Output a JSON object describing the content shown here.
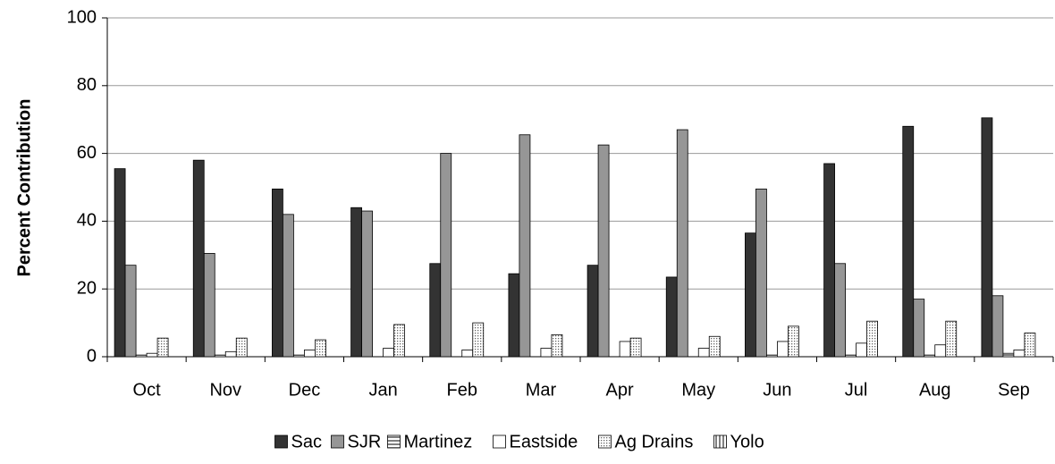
{
  "chart_data": {
    "type": "bar",
    "y_label": "Percent Contribution",
    "categories": [
      "Oct",
      "Nov",
      "Dec",
      "Jan",
      "Feb",
      "Mar",
      "Apr",
      "May",
      "Jun",
      "Jul",
      "Aug",
      "Sep"
    ],
    "series": [
      {
        "name": "Sac",
        "color": "#333333",
        "pattern": null,
        "values": [
          55.5,
          58,
          49.5,
          44,
          27.5,
          24.5,
          27,
          23.5,
          36.5,
          57,
          68,
          70.5
        ]
      },
      {
        "name": "SJR",
        "color": "#969696",
        "pattern": null,
        "values": [
          27,
          30.5,
          42,
          43,
          60,
          65.5,
          62.5,
          67,
          49.5,
          27.5,
          17,
          18
        ]
      },
      {
        "name": "Martinez",
        "color": "#808080",
        "pattern": "horizontal",
        "values": [
          0.5,
          0.5,
          0.5,
          0,
          0,
          0,
          0,
          0,
          0.5,
          0.5,
          0.5,
          1
        ]
      },
      {
        "name": "Eastside",
        "color": "#ffffff",
        "pattern": null,
        "values": [
          1,
          1.5,
          2,
          2.5,
          2,
          2.5,
          4.5,
          2.5,
          4.5,
          4,
          3.5,
          2
        ]
      },
      {
        "name": "Ag Drains",
        "color": "#a0a0a0",
        "pattern": "dots",
        "values": [
          5.5,
          5.5,
          5,
          9.5,
          10,
          6.5,
          5.5,
          6,
          9,
          10.5,
          10.5,
          7
        ]
      },
      {
        "name": "Yolo",
        "color": "#808080",
        "pattern": "vertical",
        "values": [
          0,
          0,
          0,
          0,
          0,
          0,
          0,
          0,
          0,
          0,
          0,
          0
        ]
      }
    ],
    "ylim": [
      0,
      100
    ],
    "yticks": [
      0,
      20,
      40,
      60,
      80,
      100
    ],
    "grid": true,
    "legend": "bottom"
  }
}
